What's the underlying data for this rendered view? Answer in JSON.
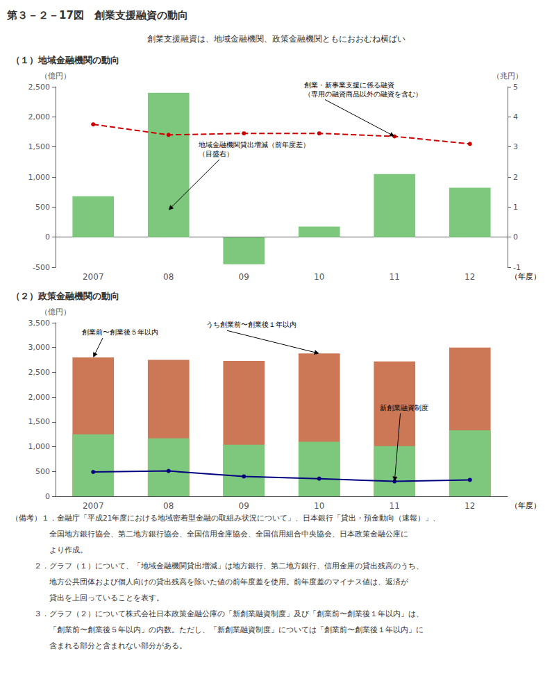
{
  "title": "第３－２－17図　創業支援融資の動向",
  "subtitle": "創業支援融資は、地域金融機関、政策金融機関ともにおおむね横ばい",
  "notes": [
    "（備考）１．金融庁「平成21年度における地域密着型金融の取組み状況について」、日本銀行「貸出・預金動向（速報）」、",
    "　　　　　全国地方銀行協会、第二地方銀行協会、全国信用金庫協会、全国信用組合中央協会、日本政策金融公庫に",
    "　　　　　より作成。",
    "　　　２．グラフ（１）について、「地域金融機関貸出増減」は地方銀行、第二地方銀行、信用金庫の貸出残高のうち、",
    "　　　　　地方公共団体および個人向けの貸出残高を除いた値の前年度差を使用。前年度差のマイナス値は、返済が",
    "　　　　　貸出を上回っていることを表す。",
    "　　　３．グラフ（２）について株式会社日本政策金融公庫の「新創業融資制度」及び「創業前〜創業後１年以内」は、",
    "　　　　　「創業前〜創業後５年以内」の内数。ただし、「新創業融資制度」については「創業前〜創業後１年以内」に",
    "　　　　　含まれる部分と含まれない部分がある。"
  ],
  "chart_data": [
    {
      "type": "bar",
      "title": "（１）地域金融機関の動向",
      "categories": [
        "2007",
        "08",
        "09",
        "10",
        "11",
        "12"
      ],
      "xlabel": "（年度）",
      "ylabel": "（億円）",
      "y2label": "（兆円）",
      "series": [
        {
          "type": "bar",
          "color": "#7DC87D",
          "values": [
            680,
            2400,
            -450,
            175,
            1050,
            820
          ]
        },
        {
          "type": "line",
          "axis": "y2",
          "color": "#CC0000",
          "line_style": "dashed",
          "marker": "circle",
          "values": [
            3.75,
            3.4,
            3.45,
            3.45,
            3.35,
            3.1
          ]
        }
      ],
      "ylim": [
        -500,
        2500
      ],
      "yticks": [
        -500,
        0,
        500,
        {
          "value": 1000,
          "label": "1,000"
        },
        {
          "value": 1500,
          "label": "1,500"
        },
        {
          "value": 2000,
          "label": "2,000"
        },
        {
          "value": 2500,
          "label": "2,500"
        }
      ],
      "y2lim": [
        -1,
        5
      ],
      "y2ticks": [
        -1,
        0,
        1,
        2,
        3,
        4,
        5
      ],
      "grid": false,
      "annotations": [
        {
          "text": "創業・新事業支援に係る融資\n（専用の融資商品以外の融資を含む）",
          "category": "11",
          "value": 3.35,
          "axis": "y2"
        },
        {
          "text": "地域金融機関貸出増減（前年度差）\n（目盛右）",
          "category": "08",
          "value": 450
        }
      ]
    },
    {
      "type": "bar",
      "title": "（２）政策金融機関の動向",
      "categories": [
        "2007",
        "08",
        "09",
        "10",
        "11",
        "12"
      ],
      "xlabel": "（年度）",
      "ylabel": "（億円）",
      "series": [
        {
          "type": "bar",
          "color": "#CC7755",
          "values": [
            2800,
            2750,
            2730,
            2880,
            2720,
            3000
          ]
        },
        {
          "type": "bar",
          "color": "#7DC87D",
          "values": [
            1250,
            1170,
            1040,
            1100,
            1010,
            1330
          ]
        },
        {
          "type": "line",
          "color": "#000080",
          "line_style": "solid",
          "marker": "circle",
          "values": [
            490,
            510,
            400,
            355,
            300,
            330
          ]
        }
      ],
      "ylim": [
        0,
        3500
      ],
      "yticks": [
        0,
        500,
        {
          "value": 1000,
          "label": "1,000"
        },
        {
          "value": 1500,
          "label": "1,500"
        },
        {
          "value": 2000,
          "label": "2,000"
        },
        {
          "value": 2500,
          "label": "2,500"
        },
        {
          "value": 3000,
          "label": "3,000"
        },
        {
          "value": 3500,
          "label": "3,500"
        }
      ],
      "grid": false,
      "annotations": [
        {
          "text": "創業前〜創業後５年以内",
          "category": "2007",
          "value": 2800
        },
        {
          "text": "うち創業前〜創業後１年以内",
          "category": "10",
          "value": 2880
        },
        {
          "text": "新創業融資制度",
          "category": "11",
          "value": 300
        }
      ]
    }
  ]
}
